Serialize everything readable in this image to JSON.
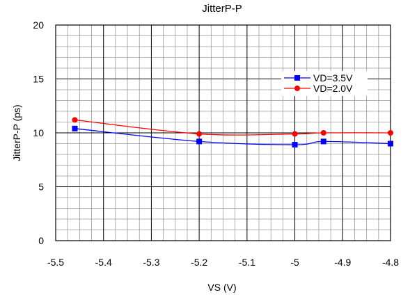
{
  "chart_data": {
    "type": "line",
    "title": "JitterP-P",
    "xlabel": "VS (V)",
    "ylabel": "JitterP-P (ps)",
    "xlim": [
      -5.5,
      -4.8
    ],
    "ylim": [
      0,
      20
    ],
    "x_ticks": [
      -5.5,
      -5.4,
      -5.3,
      -5.2,
      -5.1,
      -5.0,
      -4.9,
      -4.8
    ],
    "x_tick_labels": [
      "-5.5",
      "-5.4",
      "-5.3",
      "-5.2",
      "-5.1",
      "-5",
      "-4.9",
      "-4.8"
    ],
    "y_ticks": [
      0,
      5,
      10,
      15,
      20
    ],
    "y_tick_labels": [
      "0",
      "5",
      "10",
      "15",
      "20"
    ],
    "grid": true,
    "legend_position": "right",
    "series": [
      {
        "name": "VD=3.5V",
        "color": "#0000ff",
        "marker": "square",
        "x": [
          -5.46,
          -5.2,
          -5.0,
          -4.94,
          -4.8
        ],
        "y": [
          10.4,
          9.2,
          8.9,
          9.2,
          9.0
        ]
      },
      {
        "name": "VD=2.0V",
        "color": "#ff0000",
        "marker": "circle",
        "x": [
          -5.46,
          -5.2,
          -5.0,
          -4.94,
          -4.8
        ],
        "y": [
          11.2,
          9.9,
          9.9,
          10.0,
          10.0
        ]
      }
    ]
  }
}
